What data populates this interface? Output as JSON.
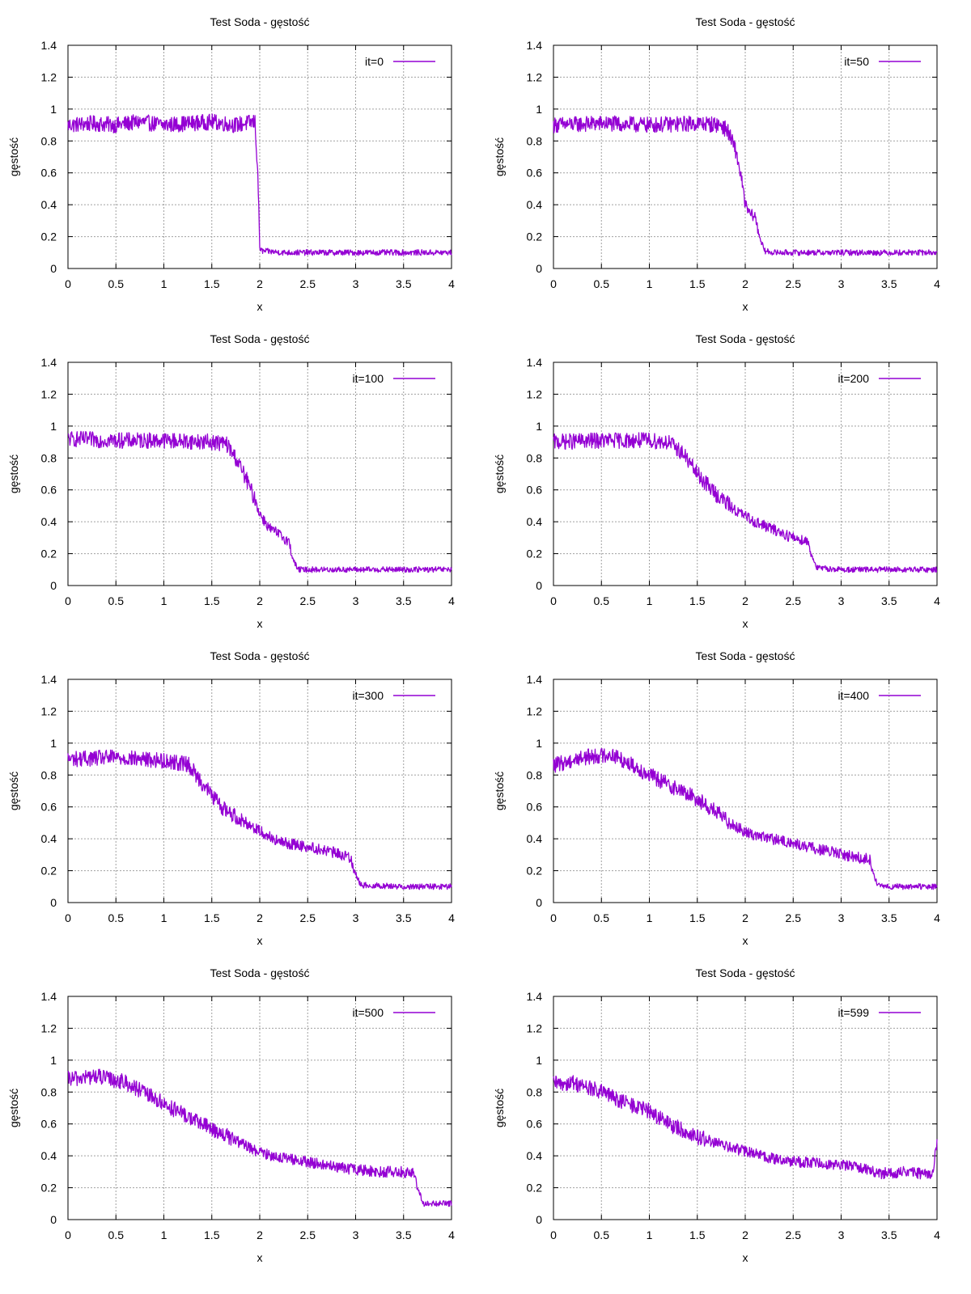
{
  "figure": {
    "line_color": "#9400d3",
    "grid_color": "#a0a0a0"
  },
  "chart_data": [
    {
      "type": "line",
      "title": "Test Soda - gęstość",
      "xlabel": "x",
      "ylabel": "gęstość",
      "xlim": [
        0,
        4
      ],
      "ylim": [
        0,
        1.4
      ],
      "xticks": [
        "0",
        "0.5",
        "1",
        "1.5",
        "2",
        "2.5",
        "3",
        "3.5",
        "4"
      ],
      "yticks": [
        "0",
        "0.2",
        "0.4",
        "0.6",
        "0.8",
        "1",
        "1.2",
        "1.4"
      ],
      "grid": true,
      "legend_position": "top-right",
      "series": [
        {
          "name": "it=0",
          "x": [
            0,
            0.25,
            0.5,
            0.75,
            1,
            1.25,
            1.5,
            1.75,
            1.95,
            1.98,
            2.0,
            2.02,
            2.25,
            2.5,
            2.75,
            3,
            3.25,
            3.5,
            3.75,
            4
          ],
          "y": [
            0.9,
            0.91,
            0.9,
            0.92,
            0.9,
            0.91,
            0.92,
            0.9,
            0.92,
            0.6,
            0.13,
            0.11,
            0.1,
            0.1,
            0.1,
            0.1,
            0.1,
            0.1,
            0.1,
            0.1
          ]
        }
      ]
    },
    {
      "type": "line",
      "title": "Test Soda - gęstość",
      "xlabel": "x",
      "ylabel": "gęstość",
      "xlim": [
        0,
        4
      ],
      "ylim": [
        0,
        1.4
      ],
      "xticks": [
        "0",
        "0.5",
        "1",
        "1.5",
        "2",
        "2.5",
        "3",
        "3.5",
        "4"
      ],
      "yticks": [
        "0",
        "0.2",
        "0.4",
        "0.6",
        "0.8",
        "1",
        "1.2",
        "1.4"
      ],
      "grid": true,
      "legend_position": "top-right",
      "series": [
        {
          "name": "it=50",
          "x": [
            0,
            0.5,
            1,
            1.5,
            1.75,
            1.82,
            1.9,
            1.95,
            2.0,
            2.05,
            2.1,
            2.15,
            2.2,
            2.3,
            2.5,
            3,
            3.5,
            4
          ],
          "y": [
            0.9,
            0.91,
            0.9,
            0.91,
            0.9,
            0.86,
            0.74,
            0.6,
            0.4,
            0.34,
            0.33,
            0.2,
            0.11,
            0.1,
            0.1,
            0.1,
            0.1,
            0.1
          ]
        }
      ]
    },
    {
      "type": "line",
      "title": "Test Soda - gęstość",
      "xlabel": "x",
      "ylabel": "gęstość",
      "xlim": [
        0,
        4
      ],
      "ylim": [
        0,
        1.4
      ],
      "xticks": [
        "0",
        "0.5",
        "1",
        "1.5",
        "2",
        "2.5",
        "3",
        "3.5",
        "4"
      ],
      "yticks": [
        "0",
        "0.2",
        "0.4",
        "0.6",
        "0.8",
        "1",
        "1.2",
        "1.4"
      ],
      "grid": true,
      "legend_position": "top-right",
      "series": [
        {
          "name": "it=100",
          "x": [
            0,
            0.5,
            1,
            1.5,
            1.65,
            1.75,
            1.85,
            1.95,
            2.0,
            2.1,
            2.2,
            2.3,
            2.35,
            2.4,
            2.5,
            3,
            3.5,
            4
          ],
          "y": [
            0.92,
            0.91,
            0.91,
            0.9,
            0.89,
            0.8,
            0.68,
            0.54,
            0.45,
            0.36,
            0.32,
            0.28,
            0.16,
            0.1,
            0.1,
            0.1,
            0.1,
            0.1
          ]
        }
      ]
    },
    {
      "type": "line",
      "title": "Test Soda - gęstość",
      "xlabel": "x",
      "ylabel": "gęstość",
      "xlim": [
        0,
        4
      ],
      "ylim": [
        0,
        1.4
      ],
      "xticks": [
        "0",
        "0.5",
        "1",
        "1.5",
        "2",
        "2.5",
        "3",
        "3.5",
        "4"
      ],
      "yticks": [
        "0",
        "0.2",
        "0.4",
        "0.6",
        "0.8",
        "1",
        "1.2",
        "1.4"
      ],
      "grid": true,
      "legend_position": "top-right",
      "series": [
        {
          "name": "it=200",
          "x": [
            0,
            0.5,
            1,
            1.2,
            1.35,
            1.5,
            1.7,
            1.9,
            2.1,
            2.3,
            2.5,
            2.65,
            2.7,
            2.75,
            3,
            3.5,
            4
          ],
          "y": [
            0.9,
            0.91,
            0.91,
            0.9,
            0.83,
            0.7,
            0.57,
            0.47,
            0.4,
            0.35,
            0.3,
            0.28,
            0.18,
            0.11,
            0.1,
            0.1,
            0.1
          ]
        }
      ]
    },
    {
      "type": "line",
      "title": "Test Soda - gęstość",
      "xlabel": "x",
      "ylabel": "gęstość",
      "xlim": [
        0,
        4
      ],
      "ylim": [
        0,
        1.4
      ],
      "xticks": [
        "0",
        "0.5",
        "1",
        "1.5",
        "2",
        "2.5",
        "3",
        "3.5",
        "4"
      ],
      "yticks": [
        "0",
        "0.2",
        "0.4",
        "0.6",
        "0.8",
        "1",
        "1.2",
        "1.4"
      ],
      "grid": true,
      "legend_position": "top-right",
      "series": [
        {
          "name": "it=300",
          "x": [
            0,
            0.5,
            1,
            1.25,
            1.4,
            1.6,
            1.8,
            2.0,
            2.2,
            2.5,
            2.8,
            2.95,
            3.0,
            3.05,
            3.5,
            4
          ],
          "y": [
            0.9,
            0.91,
            0.89,
            0.87,
            0.75,
            0.6,
            0.52,
            0.45,
            0.38,
            0.35,
            0.31,
            0.28,
            0.18,
            0.11,
            0.1,
            0.1
          ]
        }
      ]
    },
    {
      "type": "line",
      "title": "Test Soda - gęstość",
      "xlabel": "x",
      "ylabel": "gęstość",
      "xlim": [
        0,
        4
      ],
      "ylim": [
        0,
        1.4
      ],
      "xticks": [
        "0",
        "0.5",
        "1",
        "1.5",
        "2",
        "2.5",
        "3",
        "3.5",
        "4"
      ],
      "yticks": [
        "0",
        "0.2",
        "0.4",
        "0.6",
        "0.8",
        "1",
        "1.2",
        "1.4"
      ],
      "grid": true,
      "legend_position": "top-right",
      "series": [
        {
          "name": "it=400",
          "x": [
            0,
            0.3,
            0.6,
            0.8,
            1.0,
            1.2,
            1.5,
            1.8,
            2.0,
            2.2,
            2.5,
            2.8,
            3.1,
            3.3,
            3.35,
            3.4,
            3.7,
            4
          ],
          "y": [
            0.86,
            0.91,
            0.93,
            0.87,
            0.8,
            0.74,
            0.65,
            0.52,
            0.44,
            0.41,
            0.37,
            0.33,
            0.29,
            0.27,
            0.15,
            0.1,
            0.1,
            0.1
          ]
        }
      ]
    },
    {
      "type": "line",
      "title": "Test Soda - gęstość",
      "xlabel": "x",
      "ylabel": "gęstość",
      "xlim": [
        0,
        4
      ],
      "ylim": [
        0,
        1.4
      ],
      "xticks": [
        "0",
        "0.5",
        "1",
        "1.5",
        "2",
        "2.5",
        "3",
        "3.5",
        "4"
      ],
      "yticks": [
        "0",
        "0.2",
        "0.4",
        "0.6",
        "0.8",
        "1",
        "1.2",
        "1.4"
      ],
      "grid": true,
      "legend_position": "top-right",
      "series": [
        {
          "name": "it=500",
          "x": [
            0,
            0.3,
            0.6,
            0.9,
            1.2,
            1.5,
            1.8,
            2.0,
            2.3,
            2.6,
            2.9,
            3.2,
            3.5,
            3.6,
            3.65,
            3.7,
            3.8,
            4
          ],
          "y": [
            0.88,
            0.9,
            0.86,
            0.76,
            0.66,
            0.57,
            0.48,
            0.42,
            0.38,
            0.35,
            0.32,
            0.3,
            0.3,
            0.29,
            0.2,
            0.1,
            0.1,
            0.1
          ]
        }
      ]
    },
    {
      "type": "line",
      "title": "Test Soda - gęstość",
      "xlabel": "x",
      "ylabel": "gęstość",
      "xlim": [
        0,
        4
      ],
      "ylim": [
        0,
        1.4
      ],
      "xticks": [
        "0",
        "0.5",
        "1",
        "1.5",
        "2",
        "2.5",
        "3",
        "3.5",
        "4"
      ],
      "yticks": [
        "0",
        "0.2",
        "0.4",
        "0.6",
        "0.8",
        "1",
        "1.2",
        "1.4"
      ],
      "grid": true,
      "legend_position": "top-right",
      "series": [
        {
          "name": "it=599",
          "x": [
            0,
            0.2,
            0.5,
            0.8,
            1.0,
            1.2,
            1.5,
            1.8,
            2.0,
            2.3,
            2.6,
            2.9,
            3.2,
            3.4,
            3.7,
            3.95,
            4.0
          ],
          "y": [
            0.85,
            0.86,
            0.8,
            0.72,
            0.68,
            0.6,
            0.52,
            0.46,
            0.43,
            0.38,
            0.36,
            0.35,
            0.33,
            0.29,
            0.3,
            0.28,
            0.48
          ]
        }
      ]
    }
  ]
}
